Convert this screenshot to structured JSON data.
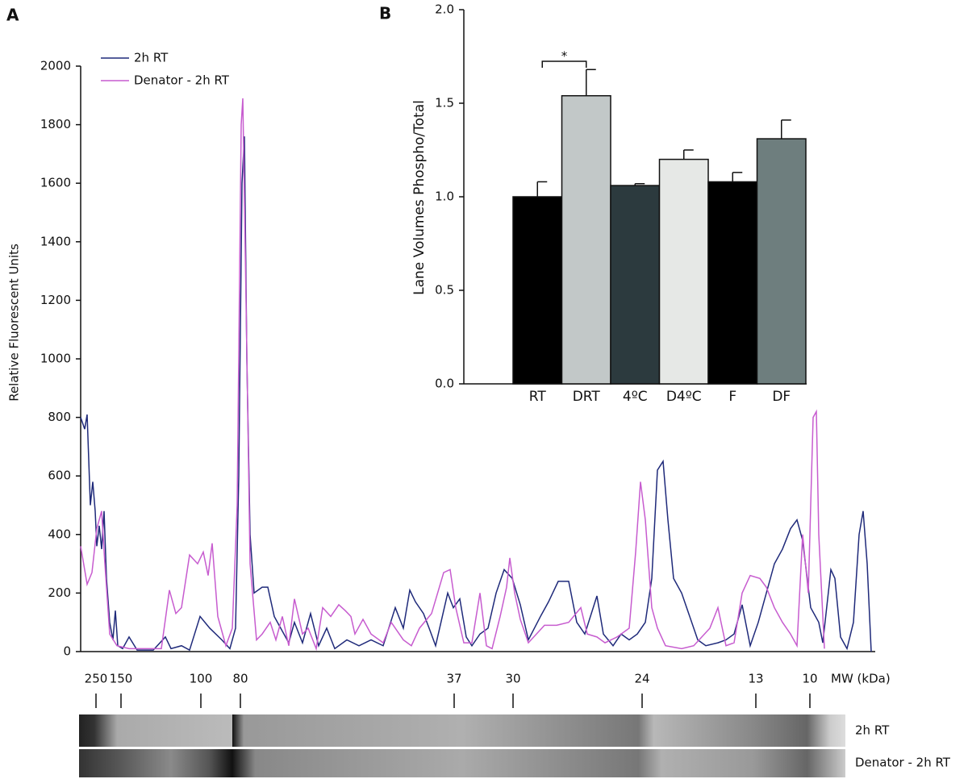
{
  "chart_data": [
    {
      "type": "line",
      "panel": "A",
      "ylabel": "Relative Fluorescent Units",
      "xlabel": "MW (kDa)",
      "xlim": [
        0,
        985
      ],
      "ylim": [
        0,
        2000
      ],
      "yticks": [
        0,
        200,
        400,
        600,
        800,
        1000,
        1200,
        1400,
        1600,
        1800,
        2000
      ],
      "xticks": [
        {
          "value": 19,
          "label": "250"
        },
        {
          "value": 50,
          "label": "150"
        },
        {
          "value": 149,
          "label": "100"
        },
        {
          "value": 198,
          "label": "80"
        },
        {
          "value": 463,
          "label": "37"
        },
        {
          "value": 536,
          "label": "30"
        },
        {
          "value": 696,
          "label": "24"
        },
        {
          "value": 837,
          "label": "13"
        },
        {
          "value": 904,
          "label": "10"
        }
      ],
      "gel_lanes": [
        "2h RT",
        "Denator - 2h RT"
      ],
      "series": [
        {
          "name": "2h RT",
          "color": "#1f2a7a",
          "x": [
            0,
            5,
            8,
            12,
            15,
            18,
            20,
            23,
            26,
            29,
            32,
            36,
            40,
            43,
            46,
            52,
            60,
            70,
            90,
            105,
            112,
            125,
            135,
            148,
            160,
            175,
            185,
            192,
            196,
            200,
            203,
            206,
            210,
            215,
            225,
            232,
            240,
            248,
            258,
            265,
            275,
            285,
            295,
            305,
            315,
            330,
            345,
            360,
            375,
            390,
            400,
            408,
            415,
            425,
            432,
            440,
            455,
            462,
            470,
            478,
            485,
            495,
            505,
            515,
            525,
            535,
            545,
            555,
            570,
            580,
            592,
            605,
            615,
            625,
            640,
            648,
            660,
            670,
            680,
            690,
            700,
            708,
            715,
            722,
            728,
            735,
            745,
            755,
            765,
            775,
            790,
            800,
            810,
            820,
            830,
            840,
            850,
            860,
            870,
            880,
            888,
            895,
            905,
            915,
            920,
            930,
            935,
            942,
            950,
            958,
            965,
            970,
            975,
            980
          ],
          "values": [
            800,
            760,
            810,
            500,
            580,
            480,
            360,
            430,
            350,
            480,
            250,
            100,
            40,
            140,
            20,
            10,
            50,
            5,
            5,
            50,
            10,
            20,
            5,
            120,
            80,
            40,
            10,
            80,
            600,
            1600,
            1760,
            1000,
            400,
            200,
            220,
            220,
            120,
            80,
            30,
            100,
            30,
            130,
            20,
            80,
            10,
            40,
            20,
            40,
            20,
            150,
            80,
            210,
            170,
            130,
            80,
            20,
            200,
            150,
            180,
            50,
            20,
            60,
            80,
            200,
            280,
            250,
            160,
            40,
            120,
            170,
            240,
            240,
            100,
            60,
            190,
            60,
            20,
            60,
            40,
            60,
            100,
            250,
            620,
            650,
            450,
            250,
            200,
            120,
            40,
            20,
            30,
            40,
            60,
            160,
            20,
            100,
            200,
            300,
            350,
            420,
            450,
            380,
            150,
            100,
            30,
            280,
            250,
            50,
            10,
            100,
            400,
            480,
            300,
            0
          ]
        },
        {
          "name": "Denator - 2h RT",
          "color": "#c75ccf",
          "x": [
            0,
            8,
            14,
            20,
            26,
            30,
            36,
            45,
            60,
            80,
            100,
            110,
            118,
            125,
            135,
            145,
            152,
            158,
            163,
            170,
            180,
            188,
            194,
            199,
            201,
            205,
            210,
            218,
            225,
            235,
            242,
            250,
            258,
            265,
            275,
            282,
            292,
            300,
            310,
            320,
            328,
            335,
            340,
            350,
            360,
            375,
            385,
            400,
            410,
            420,
            435,
            450,
            458,
            465,
            475,
            485,
            495,
            503,
            510,
            520,
            528,
            532,
            538,
            545,
            555,
            575,
            590,
            605,
            620,
            628,
            640,
            650,
            665,
            680,
            688,
            694,
            700,
            708,
            715,
            725,
            745,
            760,
            780,
            790,
            800,
            810,
            820,
            830,
            842,
            850,
            860,
            870,
            880,
            888,
            895,
            902,
            908,
            912,
            915,
            922
          ],
          "values": [
            360,
            230,
            270,
            420,
            480,
            300,
            60,
            20,
            10,
            10,
            10,
            210,
            130,
            150,
            330,
            300,
            340,
            260,
            370,
            120,
            20,
            80,
            500,
            1800,
            1890,
            1200,
            300,
            40,
            60,
            100,
            40,
            120,
            20,
            180,
            60,
            80,
            10,
            150,
            120,
            160,
            140,
            120,
            60,
            110,
            60,
            30,
            100,
            40,
            20,
            80,
            130,
            270,
            280,
            150,
            30,
            30,
            200,
            20,
            10,
            120,
            220,
            320,
            200,
            110,
            30,
            90,
            90,
            100,
            150,
            60,
            50,
            30,
            50,
            80,
            340,
            580,
            450,
            150,
            80,
            20,
            10,
            20,
            80,
            150,
            20,
            30,
            200,
            260,
            250,
            220,
            150,
            100,
            60,
            20,
            400,
            200,
            800,
            820,
            400,
            10
          ]
        }
      ]
    },
    {
      "type": "bar",
      "panel": "B",
      "ylabel": "Lane Volumes Phospho/Total",
      "categories": [
        "RT",
        "DRT",
        "4ºC",
        "D4ºC",
        "F",
        "DF"
      ],
      "values": [
        1.0,
        1.54,
        1.06,
        1.2,
        1.08,
        1.31
      ],
      "errors": [
        0.08,
        0.14,
        0.01,
        0.05,
        0.05,
        0.1
      ],
      "colors": [
        "#000000",
        "#c2c8c8",
        "#2c3a3e",
        "#e6e8e6",
        "#000000",
        "#6e7e7e"
      ],
      "ylim": [
        0,
        2
      ],
      "yticks": [
        {
          "value": 0,
          "label": "0.0"
        },
        0.5,
        {
          "value": 1,
          "label": "1.0"
        },
        1.5,
        {
          "value": 2,
          "label": "2.0"
        }
      ],
      "annotation": "*"
    }
  ]
}
